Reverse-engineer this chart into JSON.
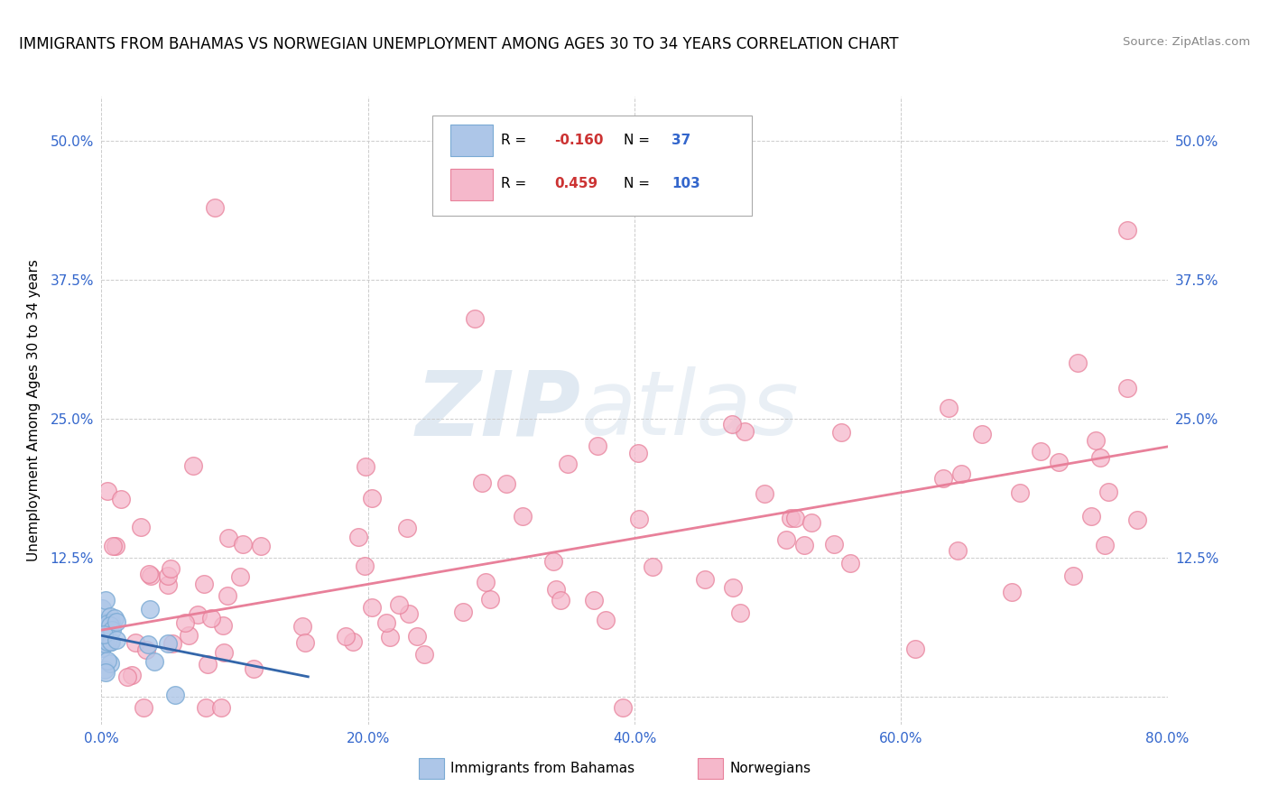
{
  "title": "IMMIGRANTS FROM BAHAMAS VS NORWEGIAN UNEMPLOYMENT AMONG AGES 30 TO 34 YEARS CORRELATION CHART",
  "source": "Source: ZipAtlas.com",
  "ylabel": "Unemployment Among Ages 30 to 34 years",
  "xlim": [
    0.0,
    0.8
  ],
  "ylim": [
    -0.025,
    0.54
  ],
  "xticks": [
    0.0,
    0.2,
    0.4,
    0.6,
    0.8
  ],
  "xticklabels": [
    "0.0%",
    "20.0%",
    "40.0%",
    "60.0%",
    "80.0%"
  ],
  "ytick_positions": [
    0.0,
    0.125,
    0.25,
    0.375,
    0.5
  ],
  "ytick_labels": [
    "",
    "12.5%",
    "25.0%",
    "37.5%",
    "50.0%"
  ],
  "blue_color": "#adc6e8",
  "blue_edge": "#7aaad4",
  "pink_color": "#f5b8cb",
  "pink_edge": "#e8809a",
  "blue_line_color": "#3366aa",
  "pink_line_color": "#e8809a",
  "watermark_zip": "ZIP",
  "watermark_atlas": "atlas",
  "grid_color": "#cccccc",
  "background_color": "#ffffff",
  "blue_trend_x0": 0.0,
  "blue_trend_x1": 0.155,
  "blue_trend_y0": 0.055,
  "blue_trend_y1": 0.018,
  "pink_trend_x0": 0.0,
  "pink_trend_x1": 0.8,
  "pink_trend_y0": 0.06,
  "pink_trend_y1": 0.225,
  "legend_r1_val": "-0.160",
  "legend_n1_val": "37",
  "legend_r2_val": "0.459",
  "legend_n2_val": "103",
  "value_color": "#3366cc",
  "r_color": "#cc3333"
}
